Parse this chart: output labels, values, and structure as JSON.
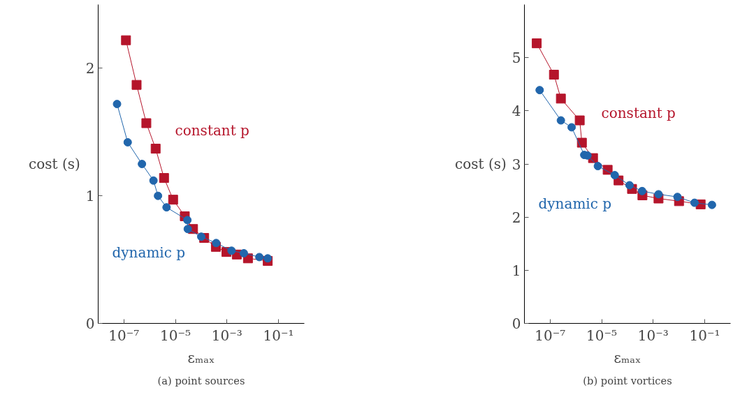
{
  "chart_data": [
    {
      "type": "line",
      "xlabel": "εₘₐₓ",
      "ylabel": "cost (s)",
      "log": "x",
      "grid": false,
      "annotations": [
        "(a) point sources"
      ],
      "xlim": [
        1e-08,
        1
      ],
      "ylim": [
        0,
        2.5
      ],
      "xticks": [
        {
          "value": 1e-07,
          "label": "10⁻⁷"
        },
        {
          "value": 1e-05,
          "label": "10⁻⁵"
        },
        {
          "value": 0.001,
          "label": "10⁻³"
        },
        {
          "value": 0.1,
          "label": "10⁻¹"
        }
      ],
      "yticks": [
        0,
        1,
        2
      ],
      "series": [
        {
          "name": "constant p",
          "color": "#b5152b",
          "marker": "square",
          "x": [
            1.2e-07,
            3.1e-07,
            7.4e-07,
            1.7e-06,
            3.6e-06,
            8.1e-06,
            2.3e-05,
            4.8e-05,
            0.00013,
            0.00037,
            0.00095,
            0.0024,
            0.0065,
            0.038
          ],
          "values": [
            2.22,
            1.87,
            1.57,
            1.37,
            1.14,
            0.97,
            0.84,
            0.74,
            0.67,
            0.6,
            0.56,
            0.54,
            0.51,
            0.49
          ]
        },
        {
          "name": "dynamic p",
          "color": "#2166ac",
          "marker": "circle",
          "x": [
            5.4e-08,
            1.4e-07,
            5e-07,
            1.4e-06,
            2.1e-06,
            4.5e-06,
            2.9e-05,
            3e-05,
            0.0001,
            0.00038,
            0.0015,
            0.0045,
            0.018,
            0.038
          ],
          "values": [
            1.72,
            1.42,
            1.25,
            1.12,
            1.0,
            0.91,
            0.81,
            0.74,
            0.68,
            0.63,
            0.57,
            0.55,
            0.52,
            0.51
          ]
        }
      ]
    },
    {
      "type": "line",
      "xlabel": "εₘₐₓ",
      "ylabel": "cost (s)",
      "log": "x",
      "grid": false,
      "annotations": [
        "(b) point vortices"
      ],
      "xlim": [
        1e-08,
        1
      ],
      "ylim": [
        0,
        6
      ],
      "xticks": [
        {
          "value": 1e-07,
          "label": "10⁻⁷"
        },
        {
          "value": 1e-05,
          "label": "10⁻⁵"
        },
        {
          "value": 0.001,
          "label": "10⁻³"
        },
        {
          "value": 0.1,
          "label": "10⁻¹"
        }
      ],
      "yticks": [
        0,
        1,
        2,
        3,
        4,
        5
      ],
      "series": [
        {
          "name": "constant p",
          "color": "#b5152b",
          "marker": "square",
          "x": [
            3e-08,
            1.4e-07,
            2.6e-07,
            1.4e-06,
            1.7e-06,
            4.6e-06,
            1.7e-05,
            4.5e-05,
            0.00015,
            0.00038,
            0.0016,
            0.01,
            0.069
          ],
          "values": [
            5.27,
            4.68,
            4.23,
            3.82,
            3.4,
            3.11,
            2.89,
            2.69,
            2.53,
            2.41,
            2.35,
            2.3,
            2.24
          ]
        },
        {
          "name": "dynamic p",
          "color": "#2166ac",
          "marker": "circle",
          "x": [
            3.9e-08,
            2.6e-07,
            6.8e-07,
            2.1e-06,
            2.8e-06,
            7.1e-06,
            3.2e-05,
            0.00012,
            0.00037,
            0.0016,
            0.0087,
            0.04,
            0.19
          ],
          "values": [
            4.39,
            3.82,
            3.69,
            3.17,
            3.16,
            2.96,
            2.79,
            2.6,
            2.49,
            2.43,
            2.38,
            2.27,
            2.23
          ]
        }
      ]
    }
  ]
}
